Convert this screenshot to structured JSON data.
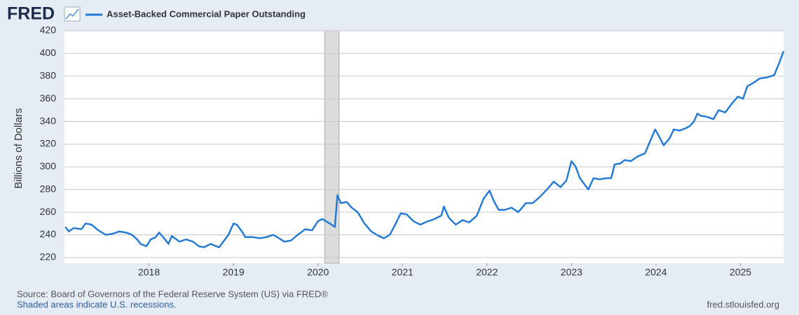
{
  "logo": "FRED",
  "chart_data": {
    "type": "line",
    "title": "Asset-Backed Commercial Paper Outstanding",
    "ylabel": "Billions of Dollars",
    "source": "Source: Board of Governors of the Federal Reserve System (US) via FRED®",
    "note": "Shaded areas indicate U.S. recessions.",
    "site": "fred.stlouisfed.org",
    "grid": true,
    "xlim": [
      2017.0,
      2025.51
    ],
    "xticks": [
      2018,
      2019,
      2020,
      2021,
      2022,
      2023,
      2024,
      2025
    ],
    "ylim": [
      215,
      420
    ],
    "yticks": [
      220,
      240,
      260,
      280,
      300,
      320,
      340,
      360,
      380,
      400,
      420
    ],
    "recessions": [
      [
        2020.08,
        2020.25
      ]
    ],
    "recession_color": "#dcdcdc",
    "series": [
      {
        "name": "Asset-Backed Commercial Paper Outstanding",
        "color": "#1f77d8",
        "x": [
          2017.01,
          2017.05,
          2017.11,
          2017.2,
          2017.25,
          2017.32,
          2017.4,
          2017.49,
          2017.57,
          2017.65,
          2017.73,
          2017.8,
          2017.86,
          2017.9,
          2017.97,
          2018.02,
          2018.08,
          2018.12,
          2018.19,
          2018.23,
          2018.27,
          2018.36,
          2018.44,
          2018.52,
          2018.59,
          2018.65,
          2018.73,
          2018.83,
          2018.94,
          2019.0,
          2019.04,
          2019.1,
          2019.14,
          2019.23,
          2019.31,
          2019.39,
          2019.47,
          2019.54,
          2019.6,
          2019.68,
          2019.76,
          2019.85,
          2019.93,
          2020.0,
          2020.05,
          2020.14,
          2020.2,
          2020.23,
          2020.27,
          2020.34,
          2020.4,
          2020.47,
          2020.55,
          2020.63,
          2020.72,
          2020.78,
          2020.85,
          2020.92,
          2020.98,
          2021.05,
          2021.13,
          2021.21,
          2021.3,
          2021.38,
          2021.46,
          2021.49,
          2021.55,
          2021.63,
          2021.71,
          2021.79,
          2021.88,
          2021.96,
          2022.03,
          2022.08,
          2022.14,
          2022.21,
          2022.29,
          2022.37,
          2022.46,
          2022.54,
          2022.62,
          2022.71,
          2022.79,
          2022.87,
          2022.94,
          2023.0,
          2023.05,
          2023.1,
          2023.16,
          2023.2,
          2023.26,
          2023.33,
          2023.41,
          2023.47,
          2023.51,
          2023.58,
          2023.63,
          2023.7,
          2023.78,
          2023.87,
          2023.95,
          2023.99,
          2024.05,
          2024.09,
          2024.16,
          2024.21,
          2024.28,
          2024.35,
          2024.4,
          2024.45,
          2024.49,
          2024.53,
          2024.61,
          2024.68,
          2024.74,
          2024.82,
          2024.9,
          2024.97,
          2025.03,
          2025.08,
          2025.15,
          2025.23,
          2025.32,
          2025.4,
          2025.46,
          2025.51
        ],
        "values": [
          247,
          243,
          246,
          245,
          250,
          249,
          244,
          240,
          241,
          243,
          242,
          240,
          236,
          232,
          230,
          236,
          238,
          242,
          236,
          232,
          239,
          234,
          236,
          234,
          230,
          229,
          232,
          229,
          240,
          250,
          249,
          243,
          238,
          238,
          237,
          238,
          240,
          237,
          234,
          235,
          240,
          245,
          244,
          252,
          254,
          250,
          247,
          275,
          268,
          269,
          264,
          260,
          250,
          243,
          239,
          237,
          240,
          250,
          259,
          258,
          252,
          249,
          252,
          254,
          257,
          265,
          255,
          249,
          253,
          251,
          257,
          272,
          279,
          270,
          262,
          262,
          264,
          260,
          268,
          268,
          273,
          280,
          287,
          282,
          288,
          305,
          300,
          290,
          284,
          280,
          290,
          289,
          290,
          290,
          302,
          303,
          306,
          305,
          309,
          312,
          326,
          333,
          325,
          319,
          325,
          333,
          332,
          334,
          336,
          340,
          347,
          345,
          344,
          342,
          350,
          348,
          356,
          362,
          360,
          371,
          374,
          378,
          379,
          381,
          392,
          402
        ]
      }
    ]
  }
}
